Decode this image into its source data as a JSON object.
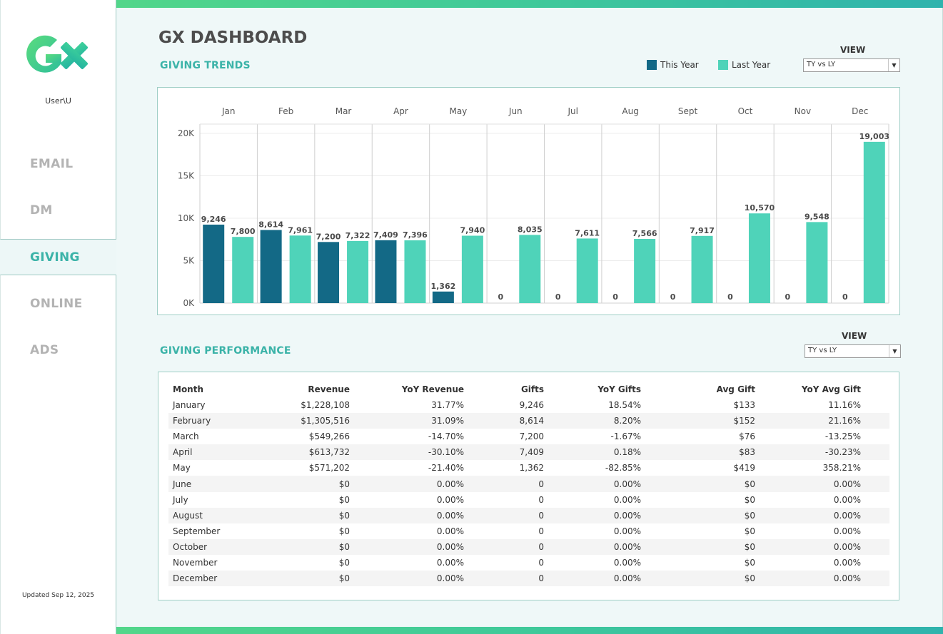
{
  "sidebar": {
    "user": "User\\U",
    "nav": [
      {
        "label": "EMAIL"
      },
      {
        "label": "DM"
      },
      {
        "label": "GIVING"
      },
      {
        "label": "ONLINE"
      },
      {
        "label": "ADS"
      }
    ],
    "active": "GIVING",
    "updated": "Updated Sep 12, 2025"
  },
  "header": {
    "title": "GX DASHBOARD"
  },
  "trends": {
    "title": "GIVING TRENDS",
    "legend": [
      {
        "label": "This Year",
        "color": "#136986"
      },
      {
        "label": "Last Year",
        "color": "#4fd3b9"
      }
    ],
    "view_label": "VIEW",
    "view_value": "TY vs LY"
  },
  "performance": {
    "title": "GIVING PERFORMANCE",
    "view_label": "VIEW",
    "view_value": "TY vs LY",
    "columns": [
      "Month",
      "Revenue",
      "YoY Revenue",
      "Gifts",
      "YoY Gifts",
      "Avg Gift",
      "YoY Avg Gift"
    ],
    "rows": [
      [
        "January",
        "$1,228,108",
        "31.77%",
        "9,246",
        "18.54%",
        "$133",
        "11.16%"
      ],
      [
        "February",
        "$1,305,516",
        "31.09%",
        "8,614",
        "8.20%",
        "$152",
        "21.16%"
      ],
      [
        "March",
        "$549,266",
        "-14.70%",
        "7,200",
        "-1.67%",
        "$76",
        "-13.25%"
      ],
      [
        "April",
        "$613,732",
        "-30.10%",
        "7,409",
        "0.18%",
        "$83",
        "-30.23%"
      ],
      [
        "May",
        "$571,202",
        "-21.40%",
        "1,362",
        "-82.85%",
        "$419",
        "358.21%"
      ],
      [
        "June",
        "$0",
        "0.00%",
        "0",
        "0.00%",
        "$0",
        "0.00%"
      ],
      [
        "July",
        "$0",
        "0.00%",
        "0",
        "0.00%",
        "$0",
        "0.00%"
      ],
      [
        "August",
        "$0",
        "0.00%",
        "0",
        "0.00%",
        "$0",
        "0.00%"
      ],
      [
        "September",
        "$0",
        "0.00%",
        "0",
        "0.00%",
        "$0",
        "0.00%"
      ],
      [
        "October",
        "$0",
        "0.00%",
        "0",
        "0.00%",
        "$0",
        "0.00%"
      ],
      [
        "November",
        "$0",
        "0.00%",
        "0",
        "0.00%",
        "$0",
        "0.00%"
      ],
      [
        "December",
        "$0",
        "0.00%",
        "0",
        "0.00%",
        "$0",
        "0.00%"
      ]
    ]
  },
  "colors": {
    "accent": "#3bb3a8",
    "this_year": "#136986",
    "last_year": "#4fd3b9"
  },
  "chart_data": {
    "type": "bar",
    "categories": [
      "Jan",
      "Feb",
      "Mar",
      "Apr",
      "May",
      "Jun",
      "Jul",
      "Aug",
      "Sept",
      "Oct",
      "Nov",
      "Dec"
    ],
    "series": [
      {
        "name": "This Year",
        "values": [
          9246,
          8614,
          7200,
          7409,
          1362,
          0,
          0,
          0,
          0,
          0,
          0,
          0
        ]
      },
      {
        "name": "Last Year",
        "values": [
          7800,
          7961,
          7322,
          7396,
          7940,
          8035,
          7611,
          7566,
          7917,
          10570,
          9548,
          19003
        ]
      }
    ],
    "data_labels": [
      [
        "9,246",
        "8,614",
        "7,200",
        "7,409",
        "1,362",
        "0",
        "0",
        "0",
        "0",
        "0",
        "0",
        "0"
      ],
      [
        "7,800",
        "7,961",
        "7,322",
        "7,396",
        "7,940",
        "8,035",
        "7,611",
        "7,566",
        "7,917",
        "10,570",
        "9,548",
        "19,003"
      ]
    ],
    "y_ticks": [
      0,
      5000,
      10000,
      15000,
      20000
    ],
    "y_tick_labels": [
      "0K",
      "5K",
      "10K",
      "15K",
      "20K"
    ],
    "ylim": [
      0,
      21000
    ],
    "grid": true
  }
}
